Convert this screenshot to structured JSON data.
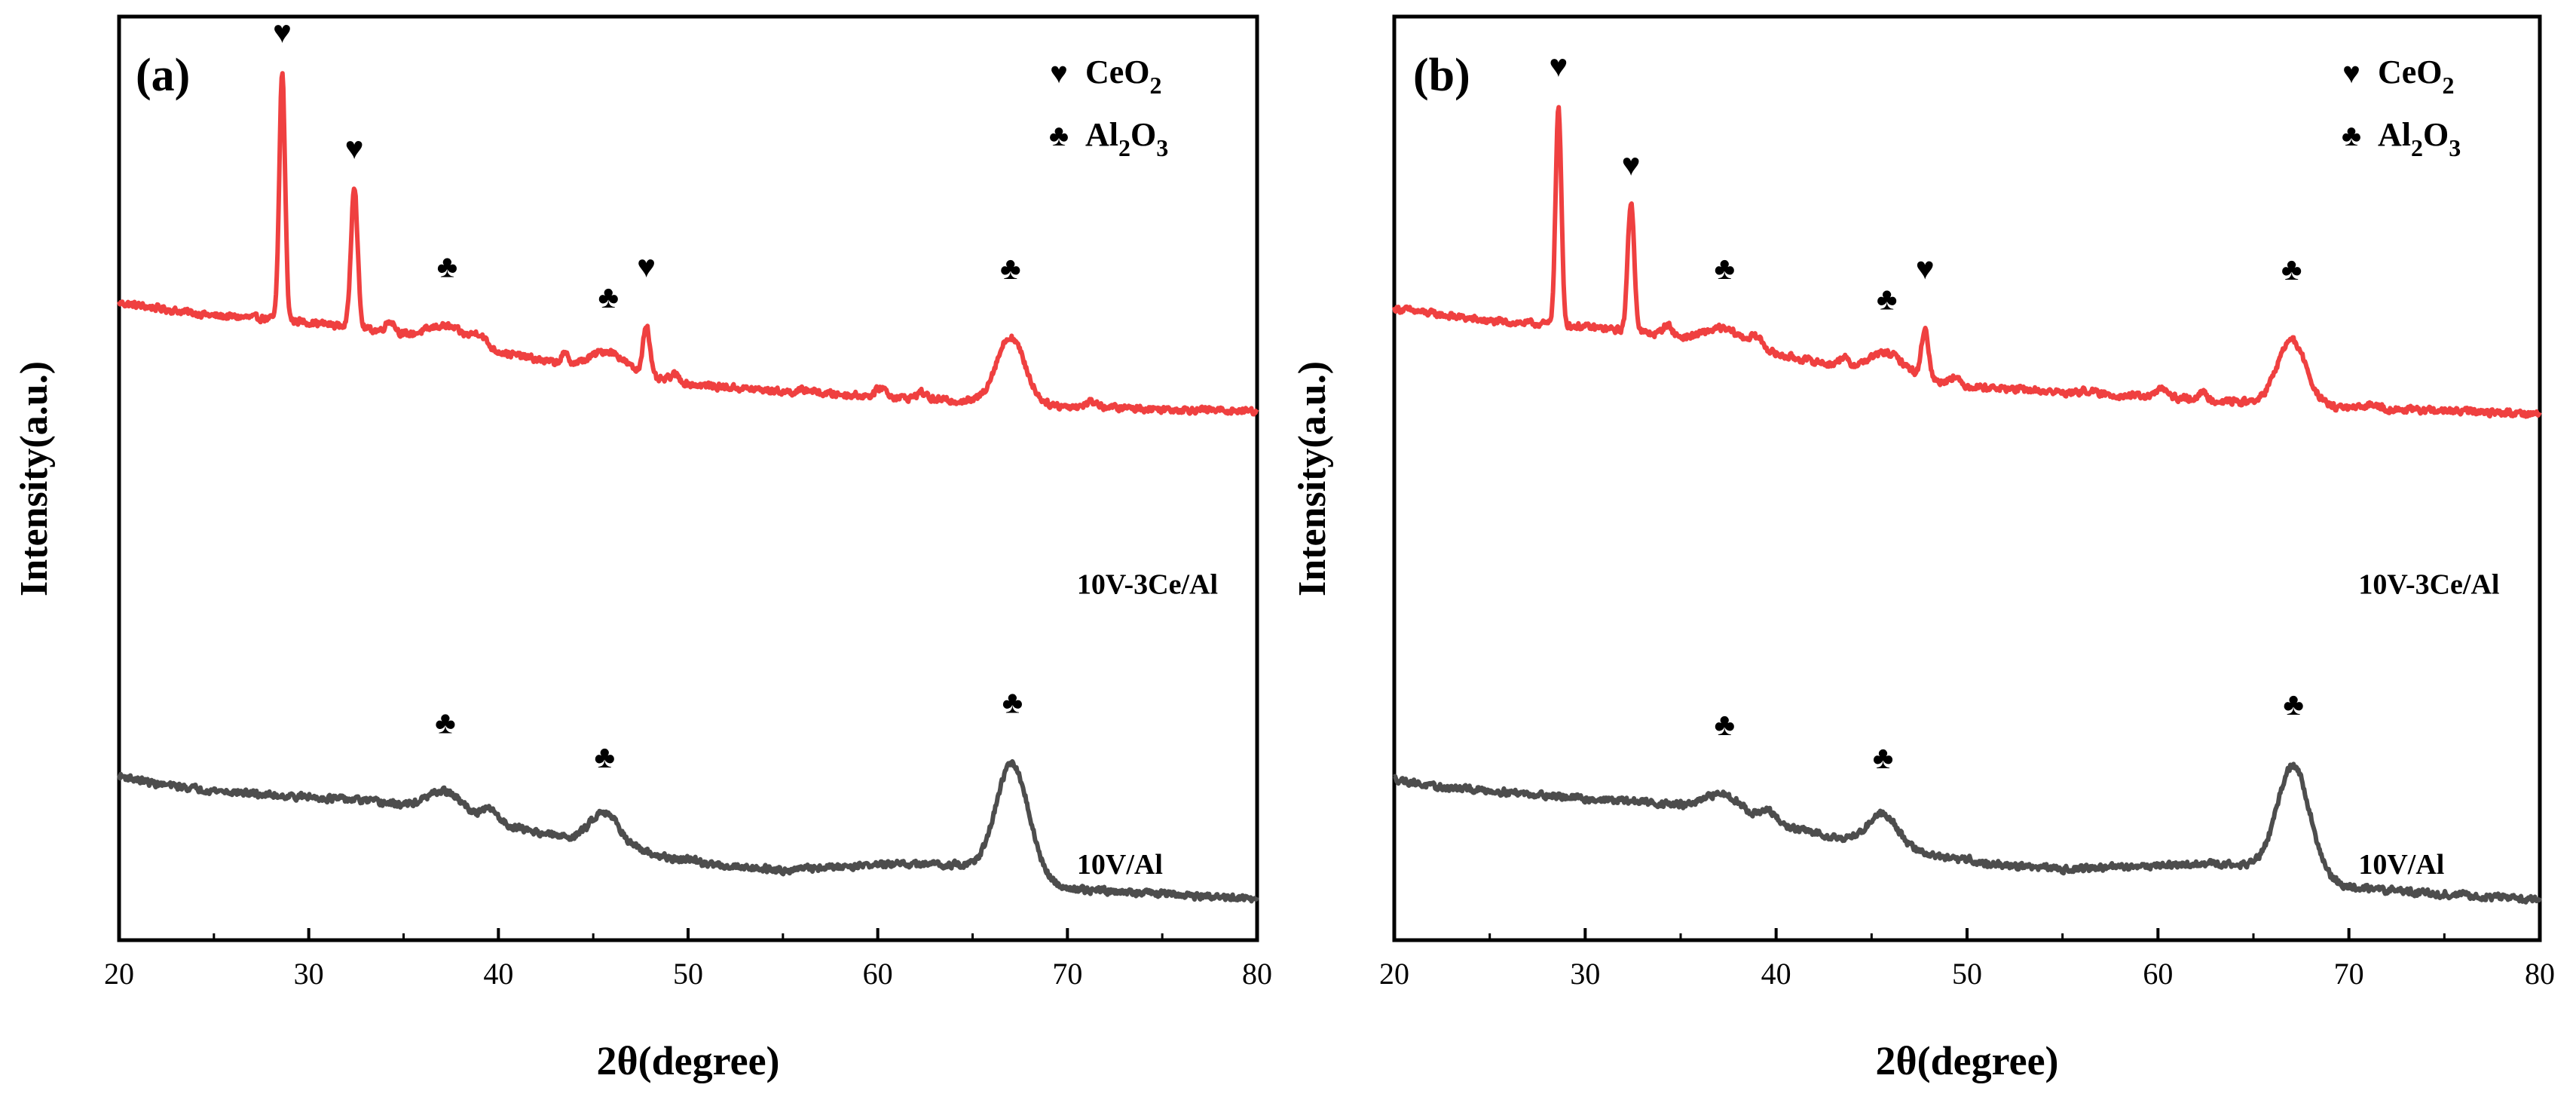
{
  "figure": {
    "panels": [
      "(a)",
      "(b)"
    ]
  },
  "colors": {
    "ce_series": "#ef4040",
    "v_series": "#4d4d4d",
    "axis": "#000000"
  },
  "chart_data": [
    {
      "type": "line",
      "panel_label": "(a)",
      "xlabel": "2θ(degree)",
      "ylabel": "Intensity(a.u.)",
      "xlim": [
        20,
        80
      ],
      "xticks": [
        20,
        30,
        40,
        50,
        60,
        70,
        80
      ],
      "ylim": [
        0,
        100
      ],
      "legend": {
        "placement": "top-right",
        "entries": [
          {
            "marker": "♥",
            "text": "CeO",
            "sub": "2"
          },
          {
            "marker": "♣",
            "text": "Al",
            "sub": "2",
            "text2": "O",
            "sub2": "3"
          }
        ]
      },
      "series": [
        {
          "name": "10V-3Ce/Al",
          "color": "#ef4040",
          "label_x": 70.5,
          "label_y": 37.5,
          "baseline": [
            [
              20,
              69
            ],
            [
              25,
              67.6
            ],
            [
              28,
              67.3
            ],
            [
              30,
              66.9
            ],
            [
              33,
              66.2
            ],
            [
              35,
              65.5
            ],
            [
              37,
              65
            ],
            [
              40,
              63.7
            ],
            [
              43,
              62.5
            ],
            [
              46,
              61.5
            ],
            [
              50,
              60.2
            ],
            [
              55,
              59.4
            ],
            [
              60,
              58.9
            ],
            [
              65,
              58.3
            ],
            [
              70,
              57.8
            ],
            [
              75,
              57.5
            ],
            [
              80,
              57.3
            ]
          ],
          "peaks": [
            {
              "x": 28.6,
              "h": 26.8,
              "w": 0.15
            },
            {
              "x": 32.4,
              "h": 15.5,
              "w": 0.17
            },
            {
              "x": 34.3,
              "h": 1.3,
              "w": 0.25
            },
            {
              "x": 37.3,
              "h": 1.6,
              "w": 1.0
            },
            {
              "x": 39.0,
              "h": 1.2,
              "w": 0.35
            },
            {
              "x": 43.5,
              "h": 1.0,
              "w": 0.2
            },
            {
              "x": 45.8,
              "h": 2.2,
              "w": 0.9
            },
            {
              "x": 47.8,
              "h": 5.6,
              "w": 0.18
            },
            {
              "x": 49.3,
              "h": 0.8,
              "w": 0.25
            },
            {
              "x": 56.3,
              "h": 0.35,
              "w": 0.3
            },
            {
              "x": 60.2,
              "h": 1.0,
              "w": 0.25
            },
            {
              "x": 62.3,
              "h": 0.7,
              "w": 0.25
            },
            {
              "x": 67.0,
              "h": 7.2,
              "w": 0.75
            },
            {
              "x": 71.3,
              "h": 0.6,
              "w": 0.3
            }
          ],
          "markers": [
            {
              "symbol": "♥",
              "x": 28.6,
              "y": 97.2
            },
            {
              "symbol": "♥",
              "x": 32.4,
              "y": 84.6
            },
            {
              "symbol": "♣",
              "x": 37.3,
              "y": 71.8
            },
            {
              "symbol": "♣",
              "x": 45.8,
              "y": 68.5
            },
            {
              "symbol": "♥",
              "x": 47.8,
              "y": 71.8
            },
            {
              "symbol": "♣",
              "x": 67.0,
              "y": 71.6
            }
          ]
        },
        {
          "name": "10V/Al",
          "color": "#4d4d4d",
          "label_x": 70.5,
          "label_y": 7.2,
          "baseline": [
            [
              20,
              17.8
            ],
            [
              22,
              16.9
            ],
            [
              25,
              16.2
            ],
            [
              28,
              15.7
            ],
            [
              30,
              15.5
            ],
            [
              33,
              15.1
            ],
            [
              35,
              14.6
            ],
            [
              37,
              14.3
            ],
            [
              40,
              12.6
            ],
            [
              43,
              11.3
            ],
            [
              46,
              10.3
            ],
            [
              50,
              8.4
            ],
            [
              55,
              7.6
            ],
            [
              60,
              8.2
            ],
            [
              64,
              8.2
            ],
            [
              67,
              7.2
            ],
            [
              70,
              5.6
            ],
            [
              75,
              5.0
            ],
            [
              80,
              4.4
            ]
          ],
          "peaks": [
            {
              "x": 37.2,
              "h": 1.9,
              "w": 0.9
            },
            {
              "x": 39.6,
              "h": 1.3,
              "w": 0.4
            },
            {
              "x": 45.6,
              "h": 3.5,
              "w": 0.75
            },
            {
              "x": 50.1,
              "h": 0.4,
              "w": 0.3
            },
            {
              "x": 67.1,
              "h": 12.0,
              "w": 0.85
            }
          ],
          "markers": [
            {
              "symbol": "♣",
              "x": 37.2,
              "y": 22.4
            },
            {
              "symbol": "♣",
              "x": 45.6,
              "y": 18.7
            },
            {
              "symbol": "♣",
              "x": 67.1,
              "y": 24.6
            }
          ]
        }
      ]
    },
    {
      "type": "line",
      "panel_label": "(b)",
      "xlabel": "2θ(degree)",
      "ylabel": "Intensity(a.u.)",
      "xlim": [
        20,
        80
      ],
      "xticks": [
        20,
        30,
        40,
        50,
        60,
        70,
        80
      ],
      "ylim": [
        0,
        100
      ],
      "legend": {
        "placement": "top-right",
        "entries": [
          {
            "marker": "♥",
            "text": "CeO",
            "sub": "2"
          },
          {
            "marker": "♣",
            "text": "Al",
            "sub": "2",
            "text2": "O",
            "sub2": "3"
          }
        ]
      },
      "series": [
        {
          "name": "10V-3Ce/Al",
          "color": "#ef4040",
          "label_x": 70.5,
          "label_y": 37.5,
          "baseline": [
            [
              20,
              68.4
            ],
            [
              25,
              67
            ],
            [
              28,
              66.7
            ],
            [
              30,
              66.4
            ],
            [
              33,
              65.8
            ],
            [
              35,
              65.2
            ],
            [
              37,
              64.8
            ],
            [
              40,
              63.4
            ],
            [
              43,
              62.3
            ],
            [
              46,
              61.3
            ],
            [
              50,
              60
            ],
            [
              55,
              59.3
            ],
            [
              60,
              58.8
            ],
            [
              65,
              58.2
            ],
            [
              70,
              57.6
            ],
            [
              75,
              57.3
            ],
            [
              80,
              57
            ]
          ],
          "peaks": [
            {
              "x": 28.6,
              "h": 23.5,
              "w": 0.15
            },
            {
              "x": 32.4,
              "h": 14.0,
              "w": 0.17
            },
            {
              "x": 34.3,
              "h": 1.2,
              "w": 0.25
            },
            {
              "x": 37.3,
              "h": 1.5,
              "w": 1.0
            },
            {
              "x": 39.0,
              "h": 1.1,
              "w": 0.35
            },
            {
              "x": 43.5,
              "h": 1.0,
              "w": 0.2
            },
            {
              "x": 45.8,
              "h": 2.2,
              "w": 0.9
            },
            {
              "x": 47.8,
              "h": 5.4,
              "w": 0.18
            },
            {
              "x": 49.3,
              "h": 0.8,
              "w": 0.25
            },
            {
              "x": 56.3,
              "h": 0.35,
              "w": 0.3
            },
            {
              "x": 60.2,
              "h": 1.0,
              "w": 0.25
            },
            {
              "x": 62.3,
              "h": 0.7,
              "w": 0.25
            },
            {
              "x": 67.0,
              "h": 7.0,
              "w": 0.75
            },
            {
              "x": 71.3,
              "h": 0.6,
              "w": 0.3
            }
          ],
          "markers": [
            {
              "symbol": "♥",
              "x": 28.6,
              "y": 93.5
            },
            {
              "symbol": "♥",
              "x": 32.4,
              "y": 82.8
            },
            {
              "symbol": "♣",
              "x": 37.3,
              "y": 71.6
            },
            {
              "symbol": "♣",
              "x": 45.8,
              "y": 68.3
            },
            {
              "symbol": "♥",
              "x": 47.8,
              "y": 71.6
            },
            {
              "symbol": "♣",
              "x": 67.0,
              "y": 71.5
            }
          ]
        },
        {
          "name": "10V/Al",
          "color": "#4d4d4d",
          "label_x": 70.5,
          "label_y": 7.2,
          "baseline": [
            [
              20,
              17.5
            ],
            [
              22,
              16.6
            ],
            [
              25,
              16.2
            ],
            [
              28,
              15.7
            ],
            [
              30,
              15.3
            ],
            [
              33,
              15
            ],
            [
              35,
              14.6
            ],
            [
              37,
              14.2
            ],
            [
              40,
              12.5
            ],
            [
              43,
              11.2
            ],
            [
              46,
              10.2
            ],
            [
              50,
              8.4
            ],
            [
              55,
              7.7
            ],
            [
              60,
              8.1
            ],
            [
              64,
              8.3
            ],
            [
              67,
              7.2
            ],
            [
              70,
              5.7
            ],
            [
              75,
              5.0
            ],
            [
              80,
              4.4
            ]
          ],
          "peaks": [
            {
              "x": 37.3,
              "h": 1.8,
              "w": 0.9
            },
            {
              "x": 39.6,
              "h": 1.2,
              "w": 0.4
            },
            {
              "x": 45.6,
              "h": 3.4,
              "w": 0.75
            },
            {
              "x": 50.1,
              "h": 0.4,
              "w": 0.3
            },
            {
              "x": 67.1,
              "h": 11.8,
              "w": 0.85
            }
          ],
          "markers": [
            {
              "symbol": "♣",
              "x": 37.3,
              "y": 22.2
            },
            {
              "symbol": "♣",
              "x": 45.6,
              "y": 18.6
            },
            {
              "symbol": "♣",
              "x": 67.1,
              "y": 24.4
            }
          ]
        }
      ]
    }
  ]
}
